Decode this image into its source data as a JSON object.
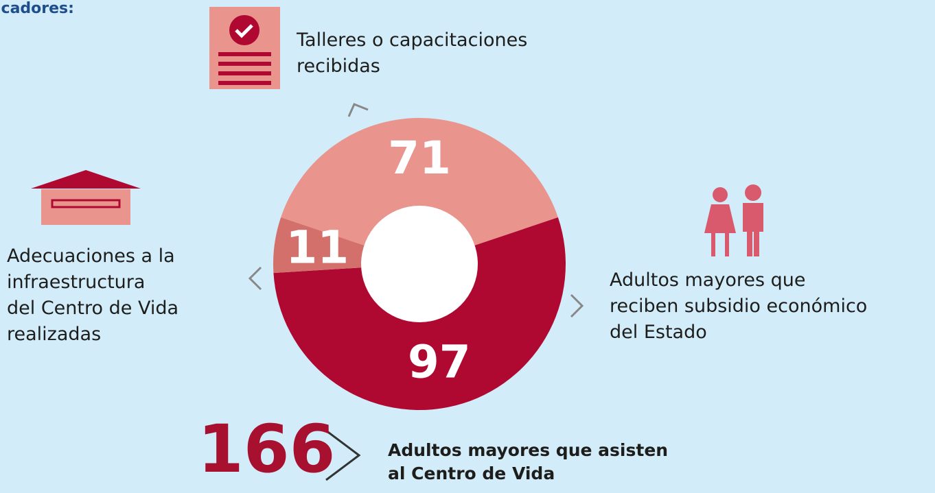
{
  "heading": "icadores:",
  "chart_data": {
    "type": "donut",
    "categories": [
      "Talleres o capacitaciones\nrecibidas",
      "Adultos mayores que\nreciben subsidio económico\ndel Estado",
      "Adecuaciones a la\ninfraestructura\ndel Centro de Vida\nrealizadas"
    ],
    "values": [
      71,
      97,
      11
    ],
    "colors": [
      "#e9948d",
      "#b00931",
      "#d4706c"
    ]
  },
  "total": {
    "value": 166,
    "label": "Adultos mayores que asisten\nal Centro de Vida"
  }
}
